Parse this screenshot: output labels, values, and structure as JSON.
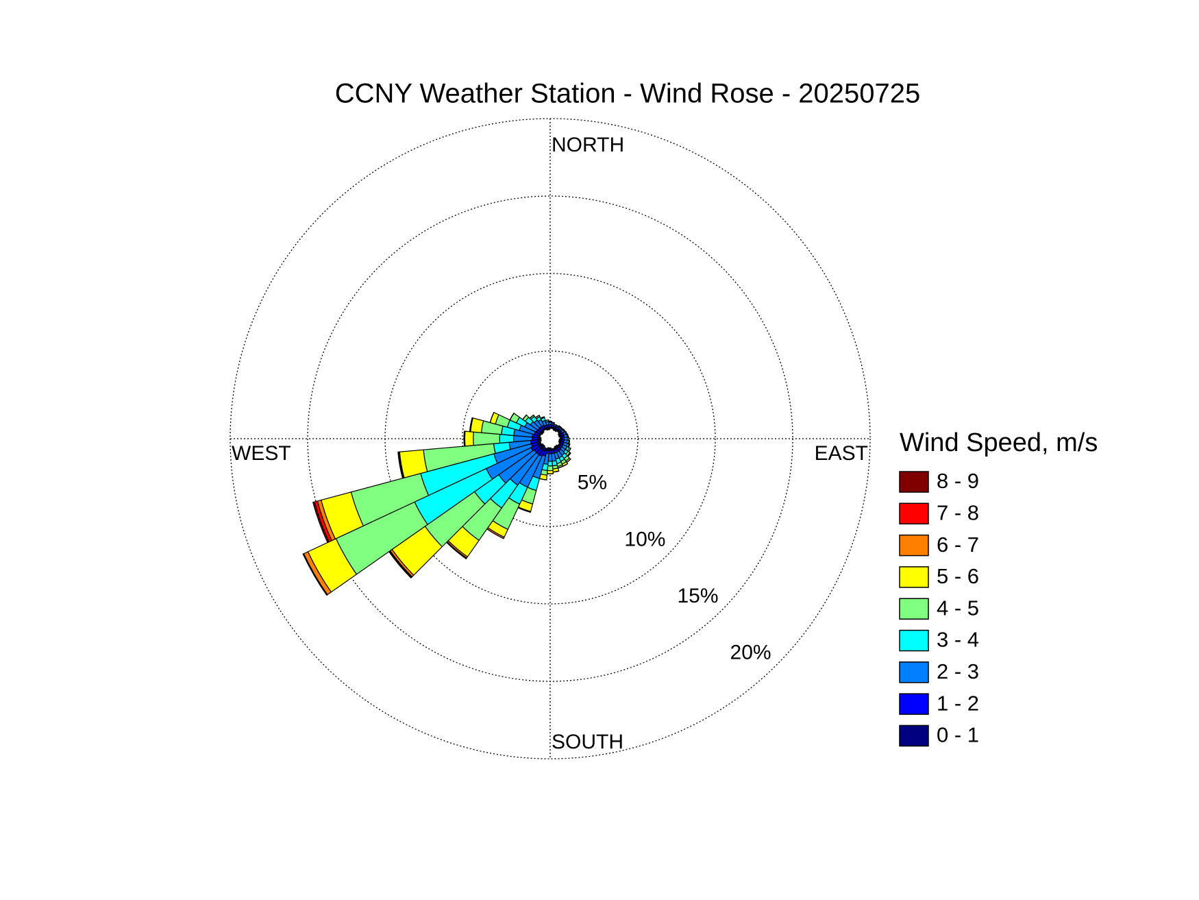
{
  "chart_data": {
    "type": "windrose",
    "title": "CCNY Weather Station - Wind Rose - 20250725",
    "legend_title": "Wind Speed, m/s",
    "compass_labels": [
      "NORTH",
      "EAST",
      "SOUTH",
      "WEST"
    ],
    "directions": [
      0,
      10,
      20,
      30,
      40,
      50,
      60,
      70,
      80,
      90,
      100,
      110,
      120,
      130,
      140,
      150,
      160,
      170,
      180,
      190,
      200,
      210,
      220,
      230,
      240,
      250,
      260,
      270,
      280,
      290,
      300,
      310,
      320,
      330,
      340,
      350
    ],
    "sector_width": 10,
    "rlim": [
      0,
      20
    ],
    "rticks": [
      {
        "value": 5,
        "label": "5%"
      },
      {
        "value": 10,
        "label": "10%"
      },
      {
        "value": 15,
        "label": "15%"
      },
      {
        "value": 20,
        "label": "20%"
      }
    ],
    "grid": true,
    "series": [
      {
        "name": "0 - 1",
        "color": "#000080",
        "values": [
          0.1,
          0.1,
          0.1,
          0.1,
          0.1,
          0.1,
          0.1,
          0.1,
          0.1,
          0.1,
          0.1,
          0.1,
          0.1,
          0.1,
          0.1,
          0.1,
          0.1,
          0.1,
          0.1,
          0.1,
          0.15,
          0.2,
          0.2,
          0.2,
          0.2,
          0.2,
          0.2,
          0.15,
          0.15,
          0.1,
          0.1,
          0.1,
          0.1,
          0.1,
          0.1,
          0.1
        ]
      },
      {
        "name": "1 - 2",
        "color": "#0000ff",
        "values": [
          0.15,
          0.15,
          0.1,
          0.1,
          0.1,
          0.1,
          0.1,
          0.15,
          0.15,
          0.15,
          0.15,
          0.15,
          0.15,
          0.15,
          0.2,
          0.2,
          0.2,
          0.2,
          0.2,
          0.2,
          0.35,
          0.4,
          0.4,
          0.4,
          0.5,
          0.4,
          0.4,
          0.35,
          0.35,
          0.3,
          0.25,
          0.2,
          0.2,
          0.2,
          0.15,
          0.15
        ]
      },
      {
        "name": "2 - 3",
        "color": "#0080ff",
        "values": [
          0.15,
          0.1,
          0.1,
          0.1,
          0.1,
          0.1,
          0.15,
          0.15,
          0.2,
          0.2,
          0.2,
          0.25,
          0.3,
          0.3,
          0.35,
          0.4,
          0.4,
          0.5,
          0.5,
          0.7,
          1.5,
          2.2,
          2.4,
          2.8,
          3.2,
          2.5,
          1.4,
          1.2,
          1.2,
          1.0,
          0.8,
          0.6,
          0.5,
          0.4,
          0.3,
          0.2
        ]
      },
      {
        "name": "3 - 4",
        "color": "#00ffff",
        "values": [
          0.05,
          0.05,
          0,
          0,
          0.05,
          0.05,
          0.05,
          0.05,
          0.05,
          0.1,
          0.1,
          0.1,
          0.15,
          0.2,
          0.25,
          0.25,
          0.3,
          0.3,
          0.3,
          0.4,
          0.8,
          1.2,
          1.8,
          1.9,
          5.1,
          4.9,
          1.0,
          0.9,
          0.8,
          0.8,
          0.6,
          0.4,
          0.3,
          0.2,
          0.2,
          0.1
        ]
      },
      {
        "name": "4 - 5",
        "color": "#80ff80",
        "values": [
          0,
          0,
          0,
          0,
          0,
          0,
          0,
          0,
          0,
          0,
          0.05,
          0.05,
          0.1,
          0.15,
          0.2,
          0.2,
          0.2,
          0.2,
          0.3,
          0.3,
          0.9,
          1.8,
          2.55,
          3.9,
          5.6,
          4.65,
          4.55,
          1.7,
          1.3,
          0.8,
          0.45,
          0.2,
          0.1,
          0.1,
          0.05,
          0
        ]
      },
      {
        "name": "5 - 6",
        "color": "#ffff00",
        "values": [
          0,
          0,
          0,
          0,
          0,
          0,
          0,
          0,
          0,
          0,
          0,
          0,
          0,
          0.05,
          0.1,
          0.15,
          0.1,
          0.2,
          0.2,
          0.3,
          0.5,
          0.55,
          1.3,
          2.6,
          2.0,
          2.0,
          1.55,
          0.55,
          0.7,
          0.35,
          0,
          0,
          0,
          0,
          0,
          0
        ]
      },
      {
        "name": "6 - 7",
        "color": "#ff8000",
        "values": [
          0,
          0,
          0,
          0,
          0,
          0,
          0,
          0,
          0,
          0,
          0,
          0,
          0,
          0,
          0,
          0,
          0,
          0,
          0,
          0,
          0.05,
          0.1,
          0.1,
          0.15,
          0.3,
          0.25,
          0.05,
          0.05,
          0.05,
          0,
          0,
          0,
          0,
          0,
          0,
          0
        ]
      },
      {
        "name": "7 - 8",
        "color": "#ff0000",
        "values": [
          0,
          0,
          0,
          0,
          0,
          0,
          0,
          0,
          0,
          0,
          0,
          0,
          0,
          0,
          0,
          0,
          0,
          0,
          0,
          0,
          0,
          0,
          0.05,
          0.05,
          0.05,
          0.2,
          0.05,
          0,
          0,
          0,
          0,
          0,
          0,
          0,
          0,
          0
        ]
      },
      {
        "name": "8 - 9",
        "color": "#800000",
        "values": [
          0,
          0,
          0,
          0,
          0,
          0,
          0,
          0,
          0,
          0,
          0,
          0,
          0,
          0,
          0,
          0,
          0,
          0,
          0,
          0,
          0,
          0,
          0,
          0.05,
          0,
          0.1,
          0,
          0,
          0,
          0,
          0,
          0,
          0,
          0,
          0,
          0
        ]
      }
    ]
  }
}
